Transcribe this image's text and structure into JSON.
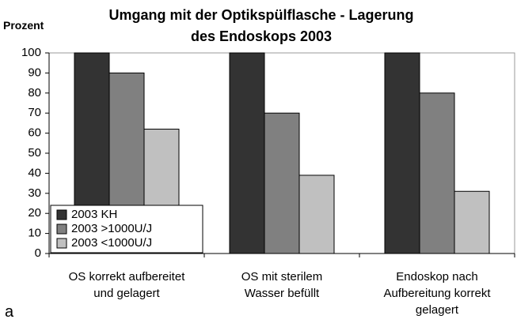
{
  "chart_data": {
    "type": "bar",
    "title": "Umgang mit der Optikspülflasche - Lagerung\ndes Endoskops 2003",
    "y_label": "Prozent",
    "panel_label": "a",
    "categories": [
      "OS korrekt aufbereitet\nund gelagert",
      "OS mit sterilem\nWasser befüllt",
      "Endoskop nach\nAufbereitung korrekt\ngelagert"
    ],
    "series": [
      {
        "name": "2003 KH",
        "color": "#333333",
        "values": [
          100,
          100,
          100
        ]
      },
      {
        "name": "2003 >1000U/J",
        "color": "#808080",
        "values": [
          90,
          70,
          80
        ]
      },
      {
        "name": "2003 <1000U/J",
        "color": "#c0c0c0",
        "values": [
          62,
          39,
          31
        ]
      }
    ],
    "ylim": [
      0,
      100
    ],
    "yticks": [
      0,
      10,
      20,
      30,
      40,
      50,
      60,
      70,
      80,
      90,
      100
    ],
    "grid": false,
    "legend": "lower left"
  }
}
